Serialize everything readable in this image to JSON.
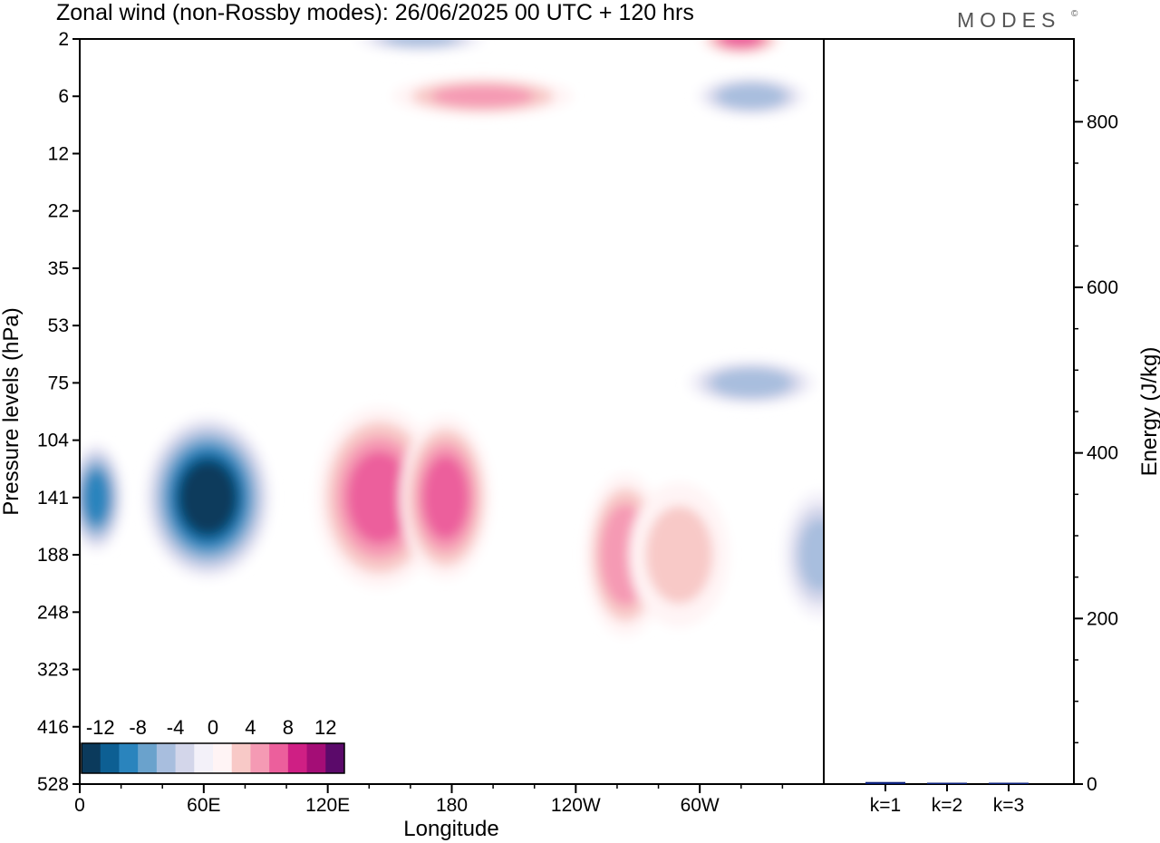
{
  "title": "Zonal wind (non-Rossby modes):  26/06/2025  00 UTC  + 120 hrs",
  "brand": "MODES",
  "brand_mark": "©",
  "colors": {
    "levels": [
      "#0b3a5c",
      "#0d5f93",
      "#2a84bd",
      "#6aa2cc",
      "#a8bede",
      "#d3d6ea",
      "#f3f1f9",
      "#fff4f5",
      "#f8c9c7",
      "#f59ab4",
      "#ec5f9c",
      "#cf1f84",
      "#a40d76",
      "#5b0a6a"
    ],
    "bars": "#0a1f7a"
  },
  "chart_data": [
    {
      "type": "heatmap",
      "title": "Zonal wind (non-Rossby modes):  26/06/2025  00 UTC  + 120 hrs",
      "xlabel": "Longitude",
      "ylabel": "Pressure levels (hPa)",
      "x_ticks": [
        "0",
        "60E",
        "120E",
        "180",
        "120W",
        "60W"
      ],
      "x_tick_values": [
        0,
        60,
        120,
        180,
        240,
        300
      ],
      "xlim": [
        0,
        360
      ],
      "y_ticks": [
        "2",
        "6",
        "12",
        "22",
        "35",
        "53",
        "75",
        "104",
        "141",
        "188",
        "248",
        "323",
        "416",
        "528"
      ],
      "y_axis": "pressure levels, top to bottom, evenly spaced",
      "colorbar": {
        "tick_labels": [
          "-12",
          "-8",
          "-4",
          "0",
          "4",
          "8",
          "12"
        ],
        "tick_values": [
          -12,
          -8,
          -4,
          0,
          4,
          8,
          12
        ],
        "bounds": [
          -14,
          14
        ],
        "step": 2
      },
      "features": [
        {
          "name": "negative-core-60E",
          "lon": 62,
          "level": "141",
          "value": -14
        },
        {
          "name": "negative-0-10E",
          "lon": 8,
          "level": "141",
          "value": -10
        },
        {
          "name": "negative-east-edge",
          "lon": 358,
          "level": "188",
          "value": -6
        },
        {
          "name": "positive-core-145E",
          "lon": 145,
          "level": "141",
          "value": 8
        },
        {
          "name": "positive-core-175E",
          "lon": 177,
          "level": "141",
          "value": 8
        },
        {
          "name": "positive-core-95W",
          "lon": 264,
          "level": "188",
          "value": 7
        },
        {
          "name": "positive-75W",
          "lon": 290,
          "level": "188",
          "value": 4
        },
        {
          "name": "negative-stripe-75hPa",
          "lon": 325,
          "level": "75",
          "value": -7
        },
        {
          "name": "positive-stratosphere-6hPa",
          "lon": 195,
          "level": "6",
          "value": 6
        },
        {
          "name": "positive-stratosphere-2hPa",
          "lon": 320,
          "level": "2",
          "value": 8
        },
        {
          "name": "negative-stratosphere-6hPa",
          "lon": 325,
          "level": "6",
          "value": -7
        },
        {
          "name": "negative-stratosphere-4hPa",
          "lon": 165,
          "level": "2",
          "value": -6
        }
      ]
    },
    {
      "type": "bar",
      "categories": [
        "k=1",
        "k=2",
        "k=3"
      ],
      "values": [
        2.5,
        1.2,
        0.8
      ],
      "ylabel": "Energy (J/kg)",
      "y_ticks": [
        "0",
        "200",
        "400",
        "600",
        "800"
      ],
      "y_tick_values": [
        0,
        200,
        400,
        600,
        800
      ],
      "ylim": [
        0,
        900
      ],
      "y_axis_side": "right"
    }
  ]
}
